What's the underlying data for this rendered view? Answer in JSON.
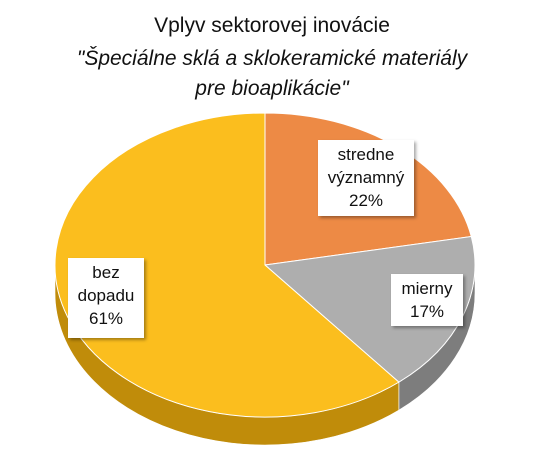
{
  "chart_data": {
    "type": "pie",
    "title": "Vplyv sektorovej inovácie",
    "subtitle_line1": "\"Špeciálne sklá a sklokeramické materiály",
    "subtitle_line2": "pre bioaplikácie\"",
    "slices": [
      {
        "label_line1": "stredne",
        "label_line2": "významný",
        "value_text": "22%",
        "value": 22,
        "color": "#ED8A45",
        "side": "#B8652A"
      },
      {
        "label_line1": "mierny",
        "label_line2": "",
        "value_text": "17%",
        "value": 17,
        "color": "#AEAEAE",
        "side": "#7D7D7D"
      },
      {
        "label_line1": "bez",
        "label_line2": "dopadu",
        "value_text": "61%",
        "value": 61,
        "color": "#FBBE1E",
        "side": "#C08C0A"
      }
    ]
  }
}
